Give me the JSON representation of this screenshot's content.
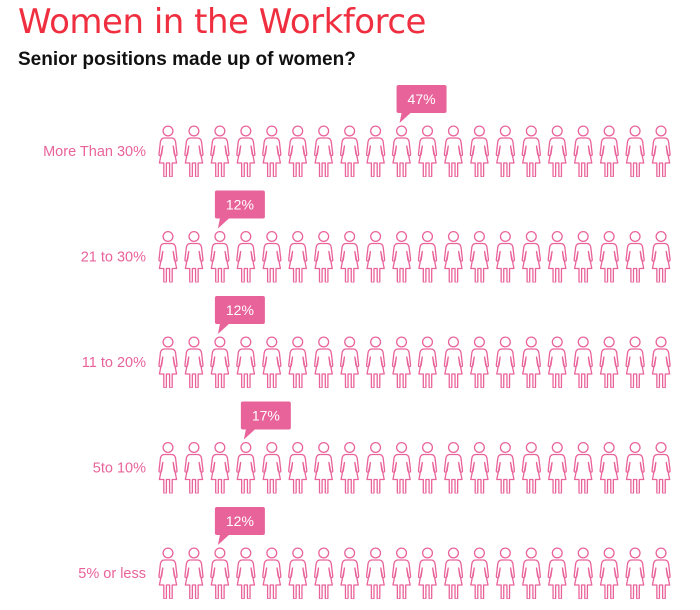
{
  "title": "Women in the Workforce",
  "subtitle": "Senior positions made up of women?",
  "colors": {
    "accent": "#ef2e3f",
    "pink": "#e9639b",
    "subtitle": "#111111",
    "badge_text": "#ffffff"
  },
  "icon": "woman-icon",
  "chart_data": {
    "type": "pictograph",
    "title": "Women in the Workforce",
    "subtitle": "Senior positions made up of women?",
    "icons_per_row": 20,
    "categories": [
      "More Than 30%",
      "21 to 30%",
      "11 to 20%",
      "5to 10%",
      "5% or less"
    ],
    "values": [
      47,
      12,
      12,
      17,
      12
    ],
    "value_labels": [
      "47%",
      "12%",
      "12%",
      "17%",
      "12%"
    ],
    "xlim": [
      0,
      100
    ]
  }
}
